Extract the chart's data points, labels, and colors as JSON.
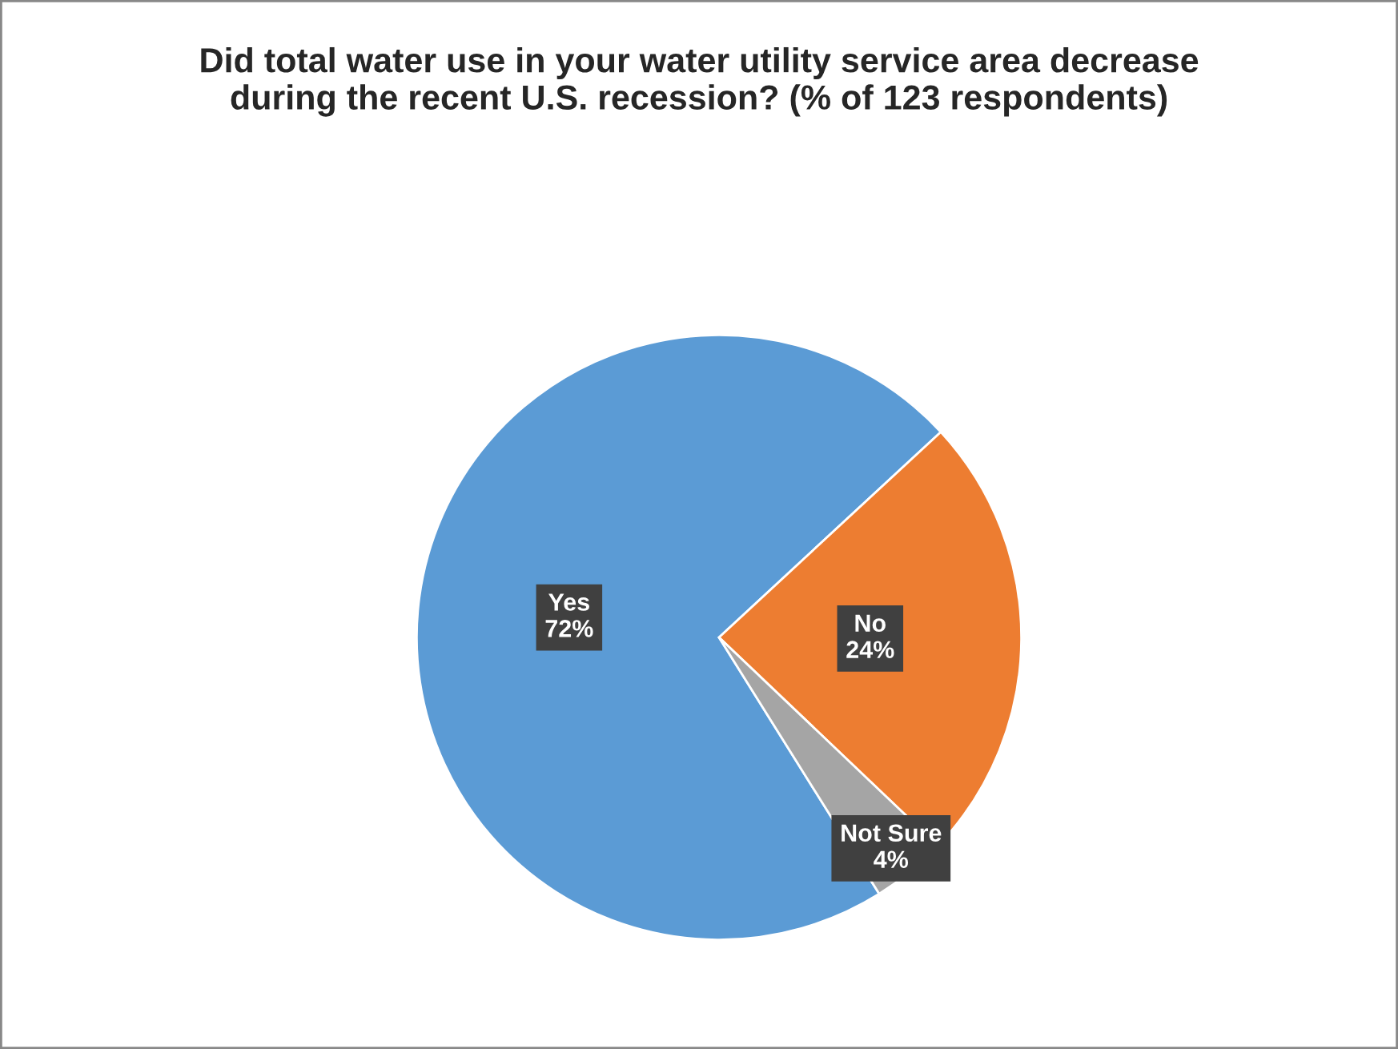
{
  "chart_data": {
    "type": "pie",
    "title": "Did total water use in your water utility service area decrease during the recent U.S. recession? (% of 123 respondents)",
    "categories": [
      "Yes",
      "No",
      "Not Sure"
    ],
    "values": [
      72,
      24,
      4
    ],
    "colors": [
      "#5b9bd5",
      "#ed7d31",
      "#a5a5a5"
    ],
    "value_labels": [
      "72%",
      "24%",
      "4%"
    ]
  }
}
